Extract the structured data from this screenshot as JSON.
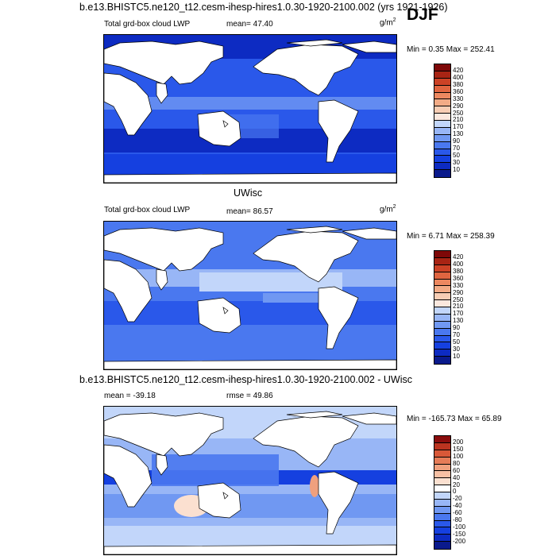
{
  "header": {
    "case_title": "b.e13.BHISTC5.ne120_t12.cesm-ihesp-hires1.0.30-1920-2100.002 (yrs 1921-1926)",
    "season": "DJF"
  },
  "panels": [
    {
      "variable": "Total grd-box cloud LWP",
      "mean_text": "mean=  47.40",
      "units": "g/m",
      "units_sup": "2",
      "minmax": "Min =   0.35 Max = 252.41",
      "labels": [
        "420",
        "400",
        "380",
        "360",
        "330",
        "290",
        "250",
        "210",
        "170",
        "130",
        "90",
        "70",
        "50",
        "30",
        "10"
      ]
    },
    {
      "heading": "UWisc",
      "variable": "Total grd-box cloud LWP",
      "mean_text": "mean=  86.57",
      "units": "g/m",
      "units_sup": "2",
      "minmax": "Min =   6.71 Max = 258.39",
      "labels": [
        "420",
        "400",
        "380",
        "360",
        "330",
        "290",
        "250",
        "210",
        "170",
        "130",
        "90",
        "70",
        "50",
        "30",
        "10"
      ]
    },
    {
      "heading": "b.e13.BHISTC5.ne120_t12.cesm-ihesp-hires1.0.30-1920-2100.002 - UWisc",
      "mean_text": "mean = -39.18",
      "rmse_text": "rmse =  49.86",
      "minmax": "Min = -165.73 Max =  65.89",
      "labels": [
        "200",
        "150",
        "100",
        "80",
        "60",
        "40",
        "20",
        "0",
        "-20",
        "-40",
        "-60",
        "-80",
        "-100",
        "-150",
        "-200"
      ]
    }
  ],
  "colors": {
    "sequential": [
      "#0a1a8c",
      "#0d2bc2",
      "#1540e0",
      "#2a58ea",
      "#4a78ef",
      "#7098f2",
      "#98b6f6",
      "#c2d6fa",
      "#fbe8de",
      "#f7cdb4",
      "#f2ab86",
      "#ec8860",
      "#e06540",
      "#cc4226",
      "#a82414",
      "#7e0808"
    ],
    "diverging": [
      "#0a1a8c",
      "#0d2bc2",
      "#1540e0",
      "#2a58ea",
      "#4a78ef",
      "#7098f2",
      "#98b6f6",
      "#c2d6fa",
      "#ffffff",
      "#fbe0d0",
      "#f7c0a4",
      "#f0a07e",
      "#e67c58",
      "#d85838",
      "#bb3420",
      "#8a0d0d"
    ]
  }
}
